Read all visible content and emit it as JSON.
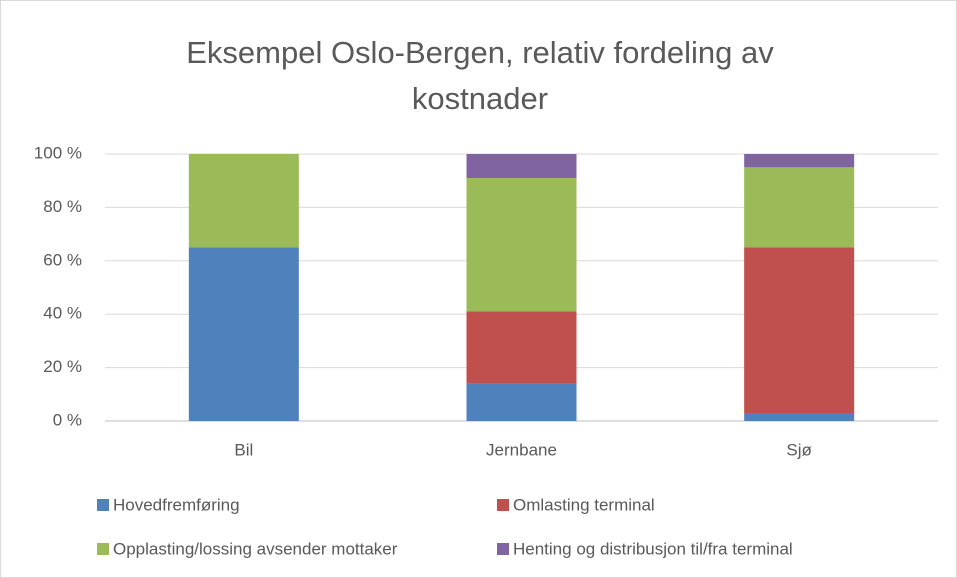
{
  "chart_data": {
    "type": "bar",
    "stacked": true,
    "title": "Eksempel Oslo-Bergen, relativ fordeling av kostnader",
    "categories": [
      "Bil",
      "Jernbane",
      "Sjø"
    ],
    "series": [
      {
        "name": "Hovedfremføring",
        "color": "#4f81bd",
        "values": [
          65,
          14,
          3
        ]
      },
      {
        "name": "Omlasting terminal",
        "color": "#c0504d",
        "values": [
          0,
          27,
          62
        ]
      },
      {
        "name": "Opplasting/lossing avsender mottaker",
        "color": "#9bbb59",
        "values": [
          35,
          50,
          30
        ]
      },
      {
        "name": "Henting og distribusjon til/fra terminal",
        "color": "#8064a2",
        "values": [
          0,
          9,
          5
        ]
      }
    ],
    "ylim": [
      0,
      100
    ],
    "yticks": [
      {
        "value": 0,
        "label": "0 %"
      },
      {
        "value": 20,
        "label": "20 %"
      },
      {
        "value": 40,
        "label": "40 %"
      },
      {
        "value": 60,
        "label": "60 %"
      },
      {
        "value": 80,
        "label": "80 %"
      },
      {
        "value": 100,
        "label": "100 %"
      }
    ],
    "grid": true,
    "legend": "bottom"
  }
}
